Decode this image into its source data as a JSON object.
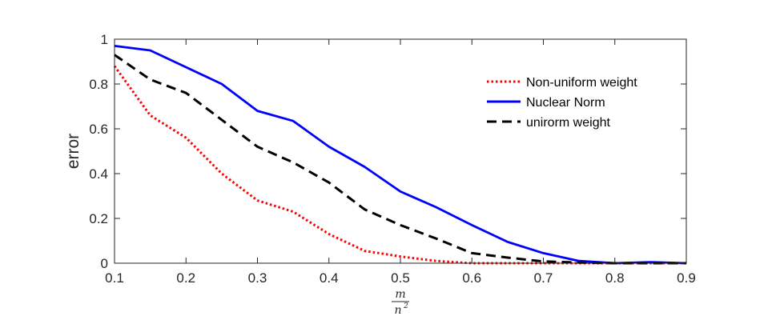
{
  "chart_data": {
    "type": "line",
    "title": "",
    "xlabel": {
      "numerator": "m",
      "denominator": "n",
      "exponent": "2"
    },
    "ylabel": "error",
    "xlim": [
      0.1,
      0.9
    ],
    "ylim": [
      0,
      1
    ],
    "xticks": [
      "0.1",
      "0.2",
      "0.3",
      "0.4",
      "0.5",
      "0.6",
      "0.7",
      "0.8",
      "0.9"
    ],
    "yticks": [
      "0",
      "0.2",
      "0.4",
      "0.6",
      "0.8",
      "1"
    ],
    "grid": false,
    "legend_position": "top-right",
    "x": [
      0.1,
      0.15,
      0.2,
      0.25,
      0.3,
      0.35,
      0.4,
      0.45,
      0.5,
      0.55,
      0.6,
      0.65,
      0.7,
      0.75,
      0.8,
      0.85,
      0.9
    ],
    "series": [
      {
        "name": "Non-uniform weight",
        "color": "#ff0000",
        "style": "dotted",
        "values": [
          0.88,
          0.66,
          0.56,
          0.4,
          0.28,
          0.23,
          0.13,
          0.055,
          0.03,
          0.01,
          0.0,
          0.0,
          0.0,
          0.0,
          0.0,
          0.0,
          0.0
        ]
      },
      {
        "name": "Nuclear Norm",
        "color": "#0000ff",
        "style": "solid",
        "values": [
          0.97,
          0.95,
          0.875,
          0.8,
          0.68,
          0.635,
          0.52,
          0.43,
          0.32,
          0.25,
          0.17,
          0.095,
          0.045,
          0.01,
          0.0,
          0.005,
          0.0
        ]
      },
      {
        "name": "unirorm weight",
        "color": "#000000",
        "style": "dashed",
        "values": [
          0.93,
          0.82,
          0.76,
          0.64,
          0.52,
          0.45,
          0.36,
          0.24,
          0.17,
          0.11,
          0.045,
          0.025,
          0.008,
          0.003,
          0.0,
          0.0,
          0.0
        ]
      }
    ]
  }
}
